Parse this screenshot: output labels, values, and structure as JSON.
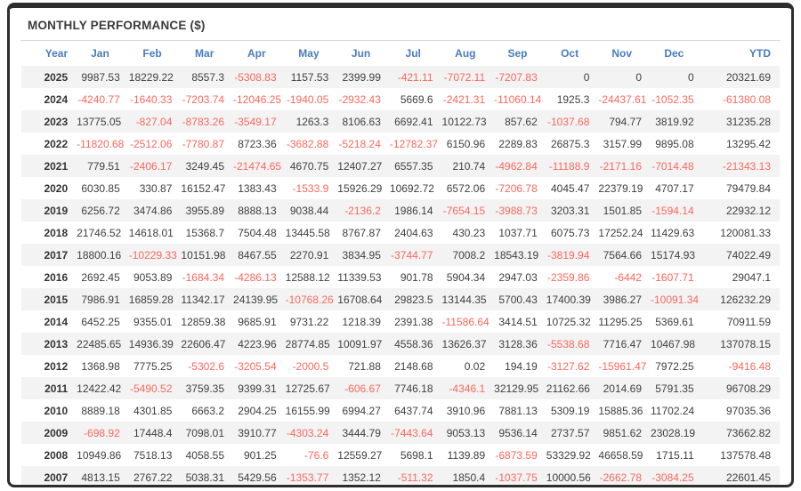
{
  "page": {
    "title": "MONTHLY PERFORMANCE ($)"
  },
  "colors": {
    "header_text": "#4a7cbf",
    "negative_value": "#fa685d",
    "positive_value": "#3f3f3f",
    "row_alt_background": "#f3f3f3",
    "frame_border": "#2d2d2d",
    "divider": "#d9d9d9"
  },
  "table": {
    "columns": [
      "Year",
      "Jan",
      "Feb",
      "Mar",
      "Apr",
      "May",
      "Jun",
      "Jul",
      "Aug",
      "Sep",
      "Oct",
      "Nov",
      "Dec",
      "YTD"
    ],
    "rows": [
      {
        "year": "2025",
        "values": [
          "9987.53",
          "18229.22",
          "8557.3",
          "-5308.83",
          "1157.53",
          "2399.99",
          "-421.11",
          "-7072.11",
          "-7207.83",
          "0",
          "0",
          "0",
          "20321.69"
        ]
      },
      {
        "year": "2024",
        "values": [
          "-4240.77",
          "-1640.33",
          "-7203.74",
          "-12046.25",
          "-1940.05",
          "-2932.43",
          "5669.6",
          "-2421.31",
          "-11060.14",
          "1925.3",
          "-24437.61",
          "-1052.35",
          "-61380.08"
        ]
      },
      {
        "year": "2023",
        "values": [
          "13775.05",
          "-827.04",
          "-8783.26",
          "-3549.17",
          "1263.3",
          "8106.63",
          "6692.41",
          "10122.73",
          "857.62",
          "-1037.68",
          "794.77",
          "3819.92",
          "31235.28"
        ]
      },
      {
        "year": "2022",
        "values": [
          "-11820.68",
          "-2512.06",
          "-7780.87",
          "8723.36",
          "-3682.88",
          "-5218.24",
          "-12782.37",
          "6150.96",
          "2289.83",
          "26875.3",
          "3157.99",
          "9895.08",
          "13295.42"
        ]
      },
      {
        "year": "2021",
        "values": [
          "779.51",
          "-2406.17",
          "3249.45",
          "-21474.65",
          "4670.75",
          "12407.27",
          "6557.35",
          "210.74",
          "-4962.84",
          "-11188.9",
          "-2171.16",
          "-7014.48",
          "-21343.13"
        ]
      },
      {
        "year": "2020",
        "values": [
          "6030.85",
          "330.87",
          "16152.47",
          "1383.43",
          "-1533.9",
          "15926.29",
          "10692.72",
          "6572.06",
          "-7206.78",
          "4045.47",
          "22379.19",
          "4707.17",
          "79479.84"
        ]
      },
      {
        "year": "2019",
        "values": [
          "6256.72",
          "3474.86",
          "3955.89",
          "8888.13",
          "9038.44",
          "-2136.2",
          "1986.14",
          "-7654.15",
          "-3988.73",
          "3203.31",
          "1501.85",
          "-1594.14",
          "22932.12"
        ]
      },
      {
        "year": "2018",
        "values": [
          "21746.52",
          "14618.01",
          "15368.7",
          "7504.48",
          "13445.58",
          "8767.87",
          "2404.63",
          "430.23",
          "1037.71",
          "6075.73",
          "17252.24",
          "11429.63",
          "120081.33"
        ]
      },
      {
        "year": "2017",
        "values": [
          "18800.16",
          "-10229.33",
          "10151.98",
          "8467.55",
          "2270.91",
          "3834.95",
          "-3744.77",
          "7008.2",
          "18543.19",
          "-3819.94",
          "7564.66",
          "15174.93",
          "74022.49"
        ]
      },
      {
        "year": "2016",
        "values": [
          "2692.45",
          "9053.89",
          "-1684.34",
          "-4286.13",
          "12588.12",
          "11339.53",
          "901.78",
          "5904.34",
          "2947.03",
          "-2359.86",
          "-6442",
          "-1607.71",
          "29047.1"
        ]
      },
      {
        "year": "2015",
        "values": [
          "7986.91",
          "16859.28",
          "11342.17",
          "24139.95",
          "-10768.26",
          "16708.64",
          "29823.5",
          "13144.35",
          "5700.43",
          "17400.39",
          "3986.27",
          "-10091.34",
          "126232.29"
        ]
      },
      {
        "year": "2014",
        "values": [
          "6452.25",
          "9355.01",
          "12859.38",
          "9685.91",
          "9731.22",
          "1218.39",
          "2391.38",
          "-11586.64",
          "3414.51",
          "10725.32",
          "11295.25",
          "5369.61",
          "70911.59"
        ]
      },
      {
        "year": "2013",
        "values": [
          "22485.65",
          "14936.39",
          "22606.47",
          "4223.96",
          "28774.85",
          "10091.97",
          "4558.36",
          "13626.37",
          "3128.36",
          "-5538.68",
          "7716.47",
          "10467.98",
          "137078.15"
        ]
      },
      {
        "year": "2012",
        "values": [
          "1368.98",
          "7775.25",
          "-5302.6",
          "-3205.54",
          "-2000.5",
          "721.88",
          "2148.68",
          "0.02",
          "194.19",
          "-3127.62",
          "-15961.47",
          "7972.25",
          "-9416.48"
        ]
      },
      {
        "year": "2011",
        "values": [
          "12422.42",
          "-5490.52",
          "3759.35",
          "9399.31",
          "12725.67",
          "-606.67",
          "7746.18",
          "-4346.1",
          "32129.95",
          "21162.66",
          "2014.69",
          "5791.35",
          "96708.29"
        ]
      },
      {
        "year": "2010",
        "values": [
          "8889.18",
          "4301.85",
          "6663.2",
          "2904.25",
          "16155.99",
          "6994.27",
          "6437.74",
          "3910.96",
          "7881.13",
          "5309.19",
          "15885.36",
          "11702.24",
          "97035.36"
        ]
      },
      {
        "year": "2009",
        "values": [
          "-698.92",
          "17448.4",
          "7098.01",
          "3910.77",
          "-4303.24",
          "3444.79",
          "-7443.64",
          "9053.13",
          "9536.14",
          "2737.57",
          "9851.62",
          "23028.19",
          "73662.82"
        ]
      },
      {
        "year": "2008",
        "values": [
          "10949.86",
          "7518.13",
          "4058.55",
          "901.25",
          "-76.6",
          "12559.27",
          "5698.1",
          "1139.89",
          "-6873.59",
          "53329.92",
          "46658.59",
          "1715.11",
          "137578.48"
        ]
      },
      {
        "year": "2007",
        "values": [
          "4813.15",
          "2767.22",
          "5038.31",
          "5429.56",
          "-1353.77",
          "1352.12",
          "-511.32",
          "1850.4",
          "-1037.75",
          "10000.56",
          "-2662.78",
          "-3084.25",
          "22601.45"
        ]
      }
    ]
  }
}
